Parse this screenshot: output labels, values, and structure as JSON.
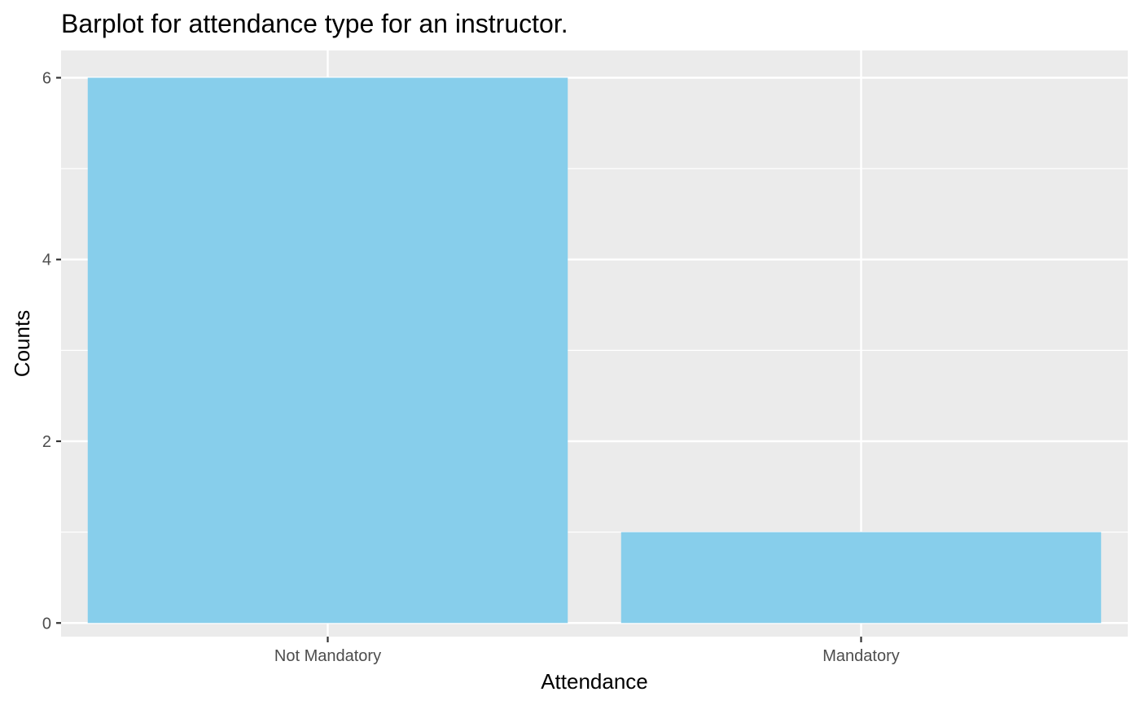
{
  "chart_data": {
    "type": "bar",
    "title": "Barplot for attendance type for an instructor.",
    "xlabel": "Attendance",
    "ylabel": "Counts",
    "categories": [
      "Not Mandatory",
      "Mandatory"
    ],
    "values": [
      6,
      1
    ],
    "ylim": [
      -0.15,
      6.3
    ],
    "yticks": [
      0,
      2,
      4,
      6
    ],
    "ytick_labels": [
      "0",
      "2",
      "4",
      "6"
    ],
    "grid": true,
    "legend": "none",
    "colors": {
      "bar": "#87CEEB",
      "panel": "#EBEBEB",
      "grid": "#FFFFFF",
      "tick": "#333333"
    }
  }
}
